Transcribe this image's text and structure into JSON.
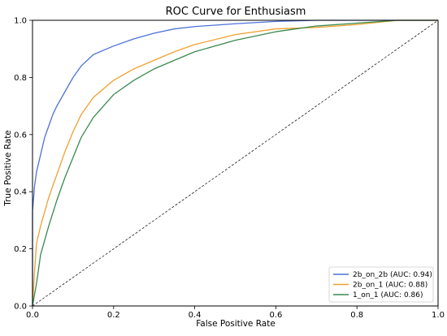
{
  "chart_data": {
    "type": "line",
    "title": "ROC Curve for Enthusiasm",
    "xlabel": "False Positive Rate",
    "ylabel": "True Positive Rate",
    "xlim": [
      0,
      1
    ],
    "ylim": [
      0,
      1
    ],
    "x_ticks": [
      "0.0",
      "0.2",
      "0.4",
      "0.6",
      "0.8",
      "1.0"
    ],
    "y_ticks": [
      "0.0",
      "0.2",
      "0.4",
      "0.6",
      "0.8",
      "1.0"
    ],
    "grid": false,
    "legend_position": "bottom-right",
    "series": [
      {
        "name": "2b_on_2b (AUC: 0.94)",
        "color": "#4c72d8",
        "points": [
          [
            0,
            0
          ],
          [
            0,
            0.33
          ],
          [
            0.005,
            0.42
          ],
          [
            0.01,
            0.47
          ],
          [
            0.02,
            0.53
          ],
          [
            0.03,
            0.59
          ],
          [
            0.04,
            0.63
          ],
          [
            0.05,
            0.67
          ],
          [
            0.06,
            0.7
          ],
          [
            0.08,
            0.75
          ],
          [
            0.1,
            0.8
          ],
          [
            0.12,
            0.84
          ],
          [
            0.15,
            0.88
          ],
          [
            0.2,
            0.91
          ],
          [
            0.25,
            0.935
          ],
          [
            0.3,
            0.955
          ],
          [
            0.35,
            0.97
          ],
          [
            0.4,
            0.978
          ],
          [
            0.5,
            0.988
          ],
          [
            0.6,
            0.996
          ],
          [
            0.7,
            1.0
          ],
          [
            1.0,
            1.0
          ]
        ]
      },
      {
        "name": "2b_on_1 (AUC: 0.88)",
        "color": "#f0a030",
        "points": [
          [
            0,
            0
          ],
          [
            0.005,
            0.12
          ],
          [
            0.01,
            0.22
          ],
          [
            0.02,
            0.28
          ],
          [
            0.04,
            0.38
          ],
          [
            0.06,
            0.46
          ],
          [
            0.08,
            0.54
          ],
          [
            0.1,
            0.61
          ],
          [
            0.12,
            0.67
          ],
          [
            0.15,
            0.73
          ],
          [
            0.2,
            0.79
          ],
          [
            0.25,
            0.83
          ],
          [
            0.3,
            0.86
          ],
          [
            0.35,
            0.89
          ],
          [
            0.4,
            0.915
          ],
          [
            0.5,
            0.95
          ],
          [
            0.6,
            0.97
          ],
          [
            0.7,
            0.975
          ],
          [
            0.8,
            0.985
          ],
          [
            0.9,
            1.0
          ],
          [
            1.0,
            1.0
          ]
        ]
      },
      {
        "name": "1_on_1 (AUC: 0.86)",
        "color": "#3a8a50",
        "points": [
          [
            0,
            0
          ],
          [
            0.01,
            0.08
          ],
          [
            0.02,
            0.18
          ],
          [
            0.04,
            0.28
          ],
          [
            0.06,
            0.37
          ],
          [
            0.08,
            0.45
          ],
          [
            0.1,
            0.52
          ],
          [
            0.12,
            0.59
          ],
          [
            0.15,
            0.66
          ],
          [
            0.2,
            0.74
          ],
          [
            0.25,
            0.79
          ],
          [
            0.3,
            0.83
          ],
          [
            0.35,
            0.86
          ],
          [
            0.4,
            0.89
          ],
          [
            0.5,
            0.93
          ],
          [
            0.6,
            0.96
          ],
          [
            0.7,
            0.98
          ],
          [
            0.8,
            0.99
          ],
          [
            0.9,
            1.0
          ],
          [
            1.0,
            1.0
          ]
        ]
      }
    ],
    "reference_line": {
      "points": [
        [
          0,
          0
        ],
        [
          1,
          1
        ]
      ],
      "style": "dashed",
      "color": "#000000"
    }
  }
}
